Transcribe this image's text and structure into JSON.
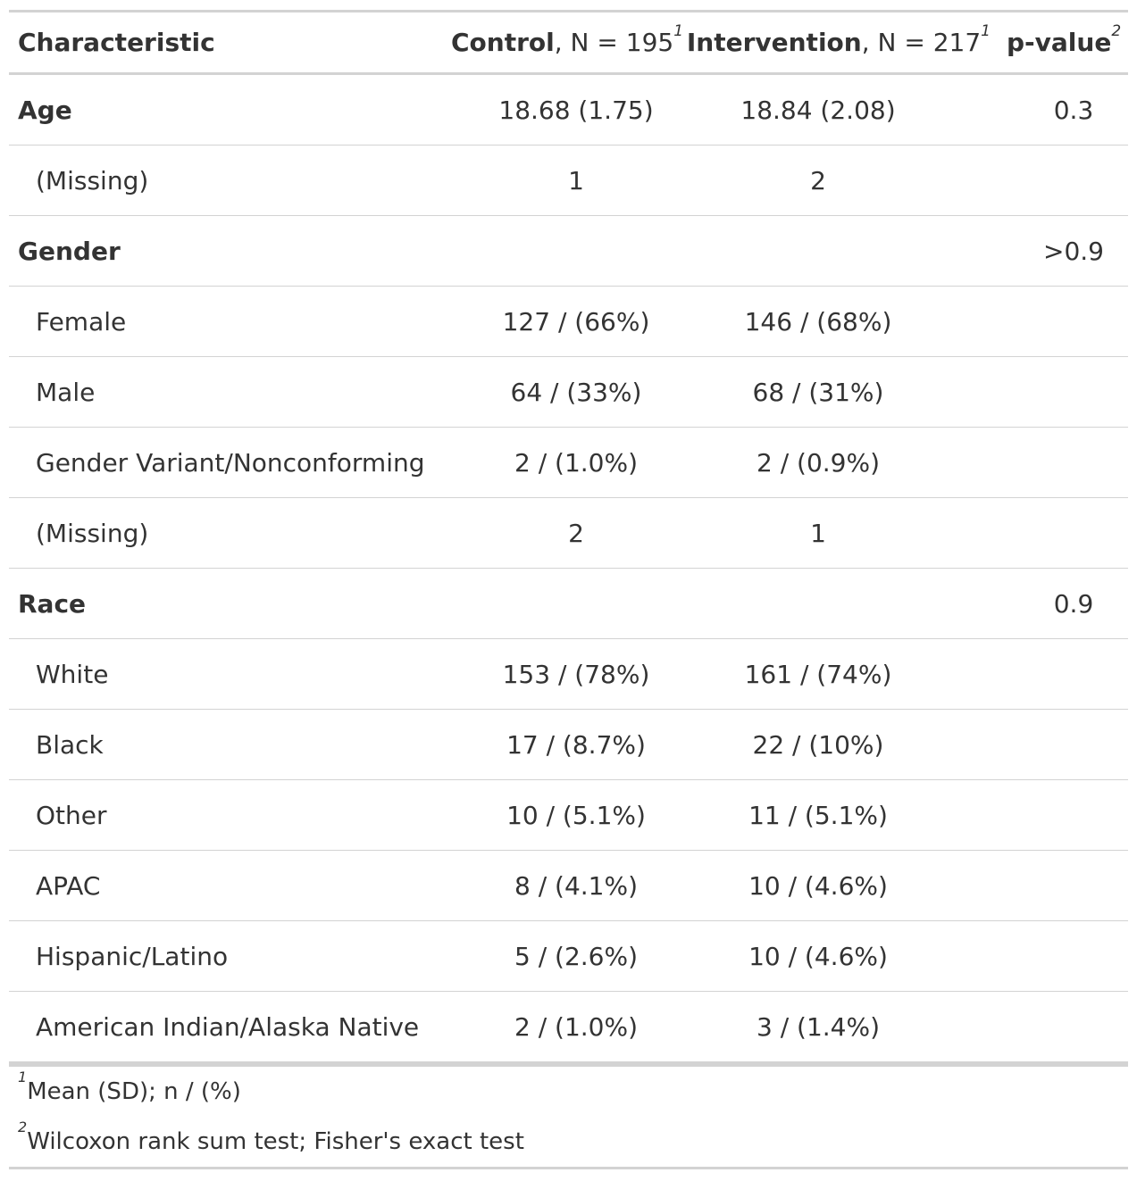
{
  "header": {
    "characteristic": "Characteristic",
    "control_bold": "Control",
    "control_rest": ", N = 195",
    "control_sup": "1",
    "intervention_bold": "Intervention",
    "intervention_rest": ", N = 217",
    "intervention_sup": "1",
    "pvalue": "p-value",
    "pvalue_sup": "2"
  },
  "rows": [
    {
      "label": "Age",
      "control": "18.68 (1.75)",
      "intervention": "18.84 (2.08)",
      "p": "0.3"
    },
    {
      "label": "(Missing)",
      "control": "1",
      "intervention": "2",
      "p": ""
    },
    {
      "label": "Gender",
      "control": "",
      "intervention": "",
      "p": ">0.9"
    },
    {
      "label": "Female",
      "control": "127 / (66%)",
      "intervention": "146 / (68%)",
      "p": ""
    },
    {
      "label": "Male",
      "control": "64 / (33%)",
      "intervention": "68 / (31%)",
      "p": ""
    },
    {
      "label": "Gender Variant/Nonconforming",
      "control": "2 / (1.0%)",
      "intervention": "2 / (0.9%)",
      "p": ""
    },
    {
      "label": "(Missing)",
      "control": "2",
      "intervention": "1",
      "p": ""
    },
    {
      "label": "Race",
      "control": "",
      "intervention": "",
      "p": "0.9"
    },
    {
      "label": "White",
      "control": "153 / (78%)",
      "intervention": "161 / (74%)",
      "p": ""
    },
    {
      "label": "Black",
      "control": "17 / (8.7%)",
      "intervention": "22 / (10%)",
      "p": ""
    },
    {
      "label": "Other",
      "control": "10 / (5.1%)",
      "intervention": "11 / (5.1%)",
      "p": ""
    },
    {
      "label": "APAC",
      "control": "8 / (4.1%)",
      "intervention": "10 / (4.6%)",
      "p": ""
    },
    {
      "label": "Hispanic/Latino",
      "control": "5 / (2.6%)",
      "intervention": "10 / (4.6%)",
      "p": ""
    },
    {
      "label": "American Indian/Alaska Native",
      "control": "2 / (1.0%)",
      "intervention": "3 / (1.4%)",
      "p": ""
    }
  ],
  "footnotes": [
    {
      "marker": "1",
      "text": "Mean (SD); n / (%)"
    },
    {
      "marker": "2",
      "text": "Wilcoxon rank sum test; Fisher's exact test"
    }
  ]
}
